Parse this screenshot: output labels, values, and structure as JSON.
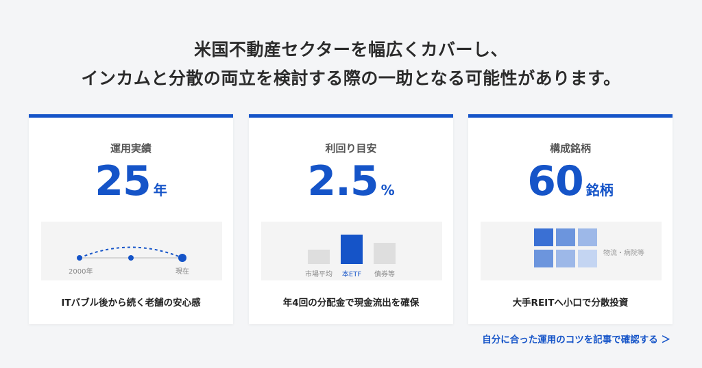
{
  "headline": {
    "line1": "米国不動産セクターを幅広くカバーし、",
    "line2": "インカムと分散の両立を検討する際の一助となる可能性があります。"
  },
  "cards": [
    {
      "label": "運用実績",
      "value": "25",
      "unit": "年",
      "timeline": {
        "start_label": "2000年",
        "end_label": "現在"
      },
      "caption": "ITバブル後から続く老舗の安心感"
    },
    {
      "label": "利回り目安",
      "value": "2.5",
      "unit": "%",
      "bars": [
        {
          "label": "市場平均",
          "level": 0.42,
          "color": "#dedede",
          "highlight": false
        },
        {
          "label": "本ETF",
          "level": 0.85,
          "color": "#1554c8",
          "highlight": true
        },
        {
          "label": "債券等",
          "level": 0.62,
          "color": "#dedede",
          "highlight": false
        }
      ],
      "caption": "年4回の分配金で現金流出を確保"
    },
    {
      "label": "構成銘柄",
      "value": "60",
      "unit": "銘柄",
      "grid_label": "物流・病院等",
      "grid_colors": [
        "#3a70d4",
        "#6c95dd",
        "#9db8e8",
        "#6c95dd",
        "#9db8e8",
        "#c4d5f2"
      ],
      "caption": "大手REITへ小口で分散投資"
    }
  ],
  "link": {
    "label": "自分に合った運用のコツを記事で確認する ＞"
  },
  "colors": {
    "accent": "#1554c8",
    "background": "#f4f5f7"
  }
}
